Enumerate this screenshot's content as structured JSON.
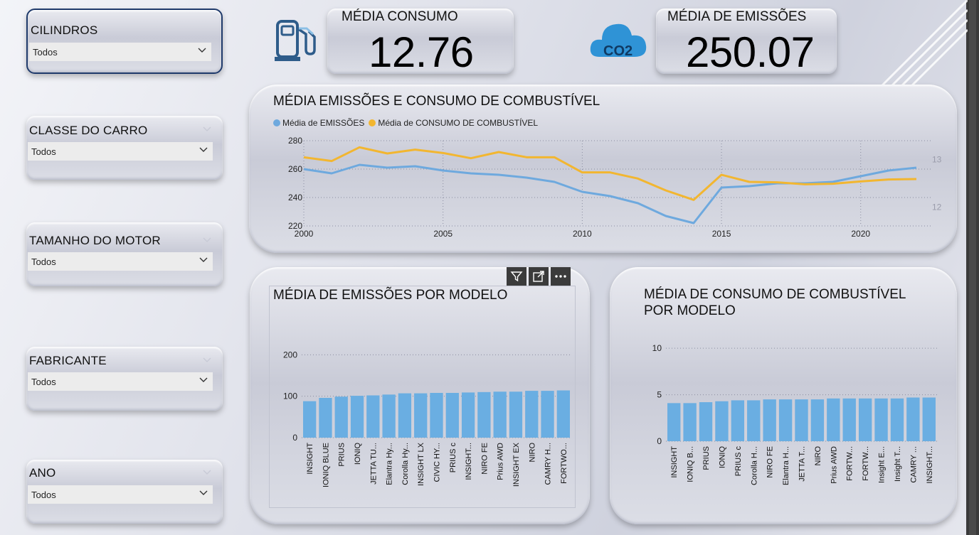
{
  "slicers": [
    {
      "title": "CILINDROS",
      "value": "Todos"
    },
    {
      "title": "CLASSE DO CARRO",
      "value": "Todos"
    },
    {
      "title": "TAMANHO DO MOTOR",
      "value": "Todos"
    },
    {
      "title": "FABRICANTE",
      "value": "Todos"
    },
    {
      "title": "ANO",
      "value": "Todos"
    }
  ],
  "kpis": {
    "consumo": {
      "title": "MÉDIA CONSUMO",
      "value": "12.76"
    },
    "emissoes": {
      "title": "MÉDIA DE EMISSÕES",
      "value": "250.07"
    },
    "co2_text": "CO2"
  },
  "colors": {
    "emissoes": "#6ea9de",
    "consumo": "#f2b630",
    "bar": "#6aaee2"
  },
  "icons": [
    "fuel-pump-icon",
    "co2-cloud-icon",
    "filter-icon",
    "focus-mode-icon",
    "more-options-icon",
    "chevron-down-icon"
  ],
  "chart_data": [
    {
      "type": "line",
      "title": "MÉDIA EMISSÕES E CONSUMO DE COMBUSTÍVEL",
      "x": [
        2000,
        2001,
        2002,
        2003,
        2004,
        2005,
        2006,
        2007,
        2008,
        2009,
        2010,
        2011,
        2012,
        2013,
        2014,
        2015,
        2016,
        2017,
        2018,
        2019,
        2020,
        2021,
        2022
      ],
      "xticks": [
        2000,
        2005,
        2010,
        2015,
        2020
      ],
      "series": [
        {
          "name": "Média de EMISSÕES",
          "axis": "left",
          "values": [
            260,
            257,
            263,
            261,
            262,
            259,
            257,
            256,
            254,
            251,
            244,
            241,
            236,
            227,
            222,
            247,
            248,
            250,
            250,
            251,
            255,
            259,
            261
          ]
        },
        {
          "name": "Média de CONSUMO DE COMBUSTÍVEL",
          "axis": "right",
          "values": [
            13.05,
            12.97,
            13.26,
            13.13,
            13.21,
            13.14,
            13.03,
            13.16,
            13.05,
            13.05,
            12.73,
            12.73,
            12.6,
            12.35,
            12.15,
            12.68,
            12.53,
            12.52,
            12.48,
            12.49,
            12.54,
            12.58,
            12.59
          ]
        }
      ],
      "ylim": [
        220,
        280
      ],
      "yticks": [
        220,
        240,
        260,
        280
      ],
      "y2ticks": [
        12,
        13
      ],
      "y2lim": [
        11.6,
        13.4
      ],
      "grid": true,
      "legend": "top-left"
    },
    {
      "type": "bar",
      "title": "MÉDIA DE EMISSÕES POR MODELO",
      "categories": [
        "INSIGHT",
        "IONIQ BLUE",
        "PRIUS",
        "IONIQ",
        "JETTA TU...",
        "Elantra Hy...",
        "Corolla Hy...",
        "INSIGHT LX",
        "CIVIC HY...",
        "PRIUS c",
        "INSIGHT...",
        "NIRO FE",
        "Prius AWD",
        "INSIGHT EX",
        "NIRO",
        "CAMRY H...",
        "FORTWO..."
      ],
      "values": [
        88,
        96,
        99,
        101,
        102,
        104,
        107,
        107,
        108,
        108,
        109,
        110,
        111,
        111,
        113,
        113,
        114
      ],
      "ylim": [
        0,
        240
      ],
      "yticks": [
        0,
        100,
        200
      ],
      "grid": true
    },
    {
      "type": "bar",
      "title": "MÉDIA DE CONSUMO DE COMBUSTÍVEL POR MODELO",
      "categories": [
        "INSIGHT",
        "IONIQ B...",
        "PRIUS",
        "IONIQ",
        "PRIUS c",
        "Corolla H...",
        "NIRO FE",
        "Elantra H...",
        "JETTA T...",
        "NIRO",
        "Prius AWD",
        "FORTW...",
        "FORTW...",
        "Insight E...",
        "Insight T...",
        "CAMRY ...",
        "INSIGHT..."
      ],
      "values": [
        4.1,
        4.1,
        4.2,
        4.3,
        4.4,
        4.4,
        4.5,
        4.5,
        4.5,
        4.5,
        4.6,
        4.6,
        4.6,
        4.6,
        4.6,
        4.7,
        4.7
      ],
      "ylim": [
        0,
        12
      ],
      "yticks": [
        0,
        5,
        10
      ],
      "grid": true
    }
  ]
}
